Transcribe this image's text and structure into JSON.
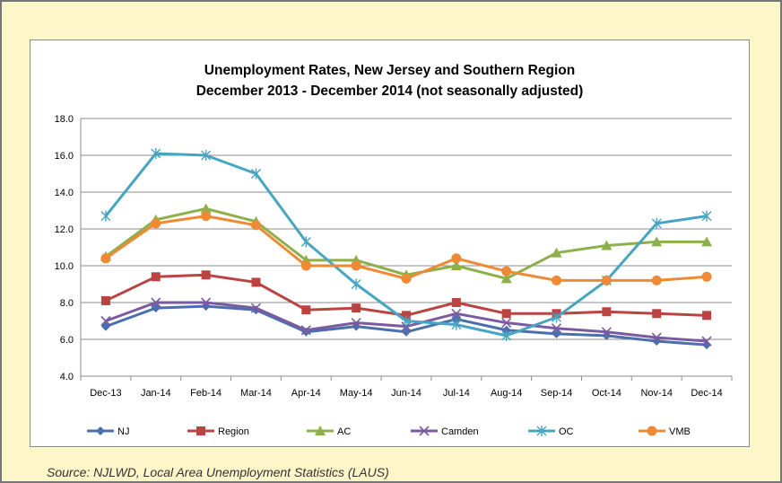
{
  "source_note": "Source: NJLWD, Local Area Unemployment Statistics (LAUS)",
  "chart_data": {
    "type": "line",
    "title": "Unemployment Rates, New Jersey and Southern Region",
    "subtitle": "December 2013 - December 2014 (not seasonally adjusted)",
    "xlabel": "",
    "ylabel": "",
    "categories": [
      "Dec-13",
      "Jan-14",
      "Feb-14",
      "Mar-14",
      "Apr-14",
      "May-14",
      "Jun-14",
      "Jul-14",
      "Aug-14",
      "Sep-14",
      "Oct-14",
      "Nov-14",
      "Dec-14"
    ],
    "ylim": [
      4.0,
      18.0
    ],
    "y_ticks": [
      "4.0",
      "6.0",
      "8.0",
      "10.0",
      "12.0",
      "14.0",
      "16.0",
      "18.0"
    ],
    "grid": true,
    "legend_position": "bottom",
    "series": [
      {
        "name": "NJ",
        "color": "#4a6fae",
        "marker": "diamond",
        "values": [
          6.7,
          7.7,
          7.8,
          7.6,
          6.4,
          6.7,
          6.4,
          7.1,
          6.5,
          6.3,
          6.2,
          5.9,
          5.7
        ]
      },
      {
        "name": "Region",
        "color": "#b94442",
        "marker": "square",
        "values": [
          8.1,
          9.4,
          9.5,
          9.1,
          7.6,
          7.7,
          7.3,
          8.0,
          7.4,
          7.4,
          7.5,
          7.4,
          7.3
        ]
      },
      {
        "name": "AC",
        "color": "#8db04a",
        "marker": "triangle",
        "values": [
          10.5,
          12.5,
          13.1,
          12.4,
          10.3,
          10.3,
          9.5,
          10.0,
          9.3,
          10.7,
          11.1,
          11.3,
          11.3
        ]
      },
      {
        "name": "Camden",
        "color": "#7a5aa0",
        "marker": "x",
        "values": [
          7.0,
          8.0,
          8.0,
          7.7,
          6.5,
          6.9,
          6.7,
          7.4,
          6.9,
          6.6,
          6.4,
          6.1,
          5.9
        ]
      },
      {
        "name": "OC",
        "color": "#46a5c0",
        "marker": "star",
        "values": [
          12.7,
          16.1,
          16.0,
          15.0,
          11.3,
          9.0,
          7.0,
          6.8,
          6.2,
          7.2,
          9.2,
          12.3,
          12.7
        ]
      },
      {
        "name": "VMB",
        "color": "#ee8a35",
        "marker": "circle",
        "values": [
          10.4,
          12.3,
          12.7,
          12.2,
          10.0,
          10.0,
          9.3,
          10.4,
          9.7,
          9.2,
          9.2,
          9.2,
          9.4
        ]
      }
    ]
  }
}
